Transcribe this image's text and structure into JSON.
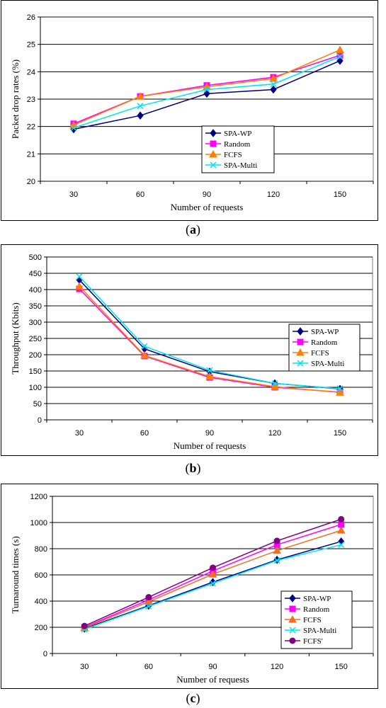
{
  "chart_data": [
    {
      "type": "line",
      "caption_open": "(",
      "caption_letter": "a",
      "caption_close": ")",
      "x": [
        30,
        60,
        90,
        120,
        150
      ],
      "xticks": [
        "30",
        "60",
        "90",
        "120",
        "150"
      ],
      "xlabel": "Number of requests",
      "ylabel": "Packet drop rates (%)",
      "ylim": [
        20,
        26
      ],
      "yticks": [
        "20",
        "21",
        "22",
        "23",
        "24",
        "25",
        "26"
      ],
      "grid": true,
      "legend_position": "center-right",
      "series": [
        {
          "name": "SPA-WP",
          "color": "#000080",
          "marker": "diamond",
          "values": [
            21.9,
            22.4,
            23.2,
            23.35,
            24.4
          ]
        },
        {
          "name": "Random",
          "color": "#ff00ff",
          "marker": "square",
          "values": [
            22.1,
            23.1,
            23.5,
            23.8,
            24.6
          ]
        },
        {
          "name": "FCFS",
          "color": "#ff8000",
          "marker": "triangle",
          "values": [
            22.05,
            23.1,
            23.45,
            23.75,
            24.8
          ]
        },
        {
          "name": "SPA-Multi",
          "color": "#00e5ee",
          "marker": "x",
          "values": [
            21.95,
            22.75,
            23.35,
            23.55,
            24.55
          ]
        }
      ]
    },
    {
      "type": "line",
      "caption_open": "(",
      "caption_letter": "b",
      "caption_close": ")",
      "x": [
        30,
        60,
        90,
        120,
        150
      ],
      "xticks": [
        "30",
        "60",
        "90",
        "120",
        "150"
      ],
      "xlabel": "Number of requests",
      "ylabel": "Throughput (Kbits)",
      "ylim": [
        0,
        500
      ],
      "yticks": [
        "0",
        "50",
        "100",
        "150",
        "200",
        "250",
        "300",
        "350",
        "400",
        "450",
        "500"
      ],
      "grid": true,
      "legend_position": "center-right",
      "series": [
        {
          "name": "SPA-WP",
          "color": "#000080",
          "marker": "diamond",
          "values": [
            430,
            218,
            148,
            112,
            95
          ]
        },
        {
          "name": "Random",
          "color": "#ff00ff",
          "marker": "square",
          "values": [
            402,
            196,
            130,
            100,
            85
          ]
        },
        {
          "name": "FCFS",
          "color": "#ff8000",
          "marker": "triangle",
          "values": [
            410,
            198,
            133,
            102,
            84
          ]
        },
        {
          "name": "SPA-Multi",
          "color": "#00e5ee",
          "marker": "x",
          "values": [
            440,
            226,
            152,
            112,
            96
          ]
        }
      ]
    },
    {
      "type": "line",
      "caption_open": "(",
      "caption_letter": "c",
      "caption_close": ")",
      "x": [
        30,
        60,
        90,
        120,
        150
      ],
      "xticks": [
        "30",
        "60",
        "90",
        "120",
        "150"
      ],
      "xlabel": "Number of requests",
      "ylabel": "Turnaround times (s)",
      "ylim": [
        0,
        1200
      ],
      "yticks": [
        "0",
        "200",
        "400",
        "600",
        "800",
        "1000",
        "1200"
      ],
      "grid": true,
      "legend_position": "bottom-right",
      "series": [
        {
          "name": "SPA-WP",
          "color": "#000080",
          "marker": "diamond",
          "values": [
            190,
            365,
            545,
            715,
            855
          ]
        },
        {
          "name": "Random",
          "color": "#ff00ff",
          "marker": "square",
          "values": [
            200,
            410,
            630,
            830,
            985
          ]
        },
        {
          "name": "FCFS",
          "color": "#f07020",
          "marker": "triangle",
          "values": [
            195,
            395,
            605,
            785,
            940
          ]
        },
        {
          "name": "SPA-Multi",
          "color": "#00e5ee",
          "marker": "x",
          "values": [
            185,
            360,
            535,
            710,
            830
          ]
        },
        {
          "name": "FCFS'",
          "color": "#800080",
          "marker": "circle",
          "values": [
            210,
            430,
            655,
            860,
            1025
          ]
        }
      ]
    }
  ]
}
